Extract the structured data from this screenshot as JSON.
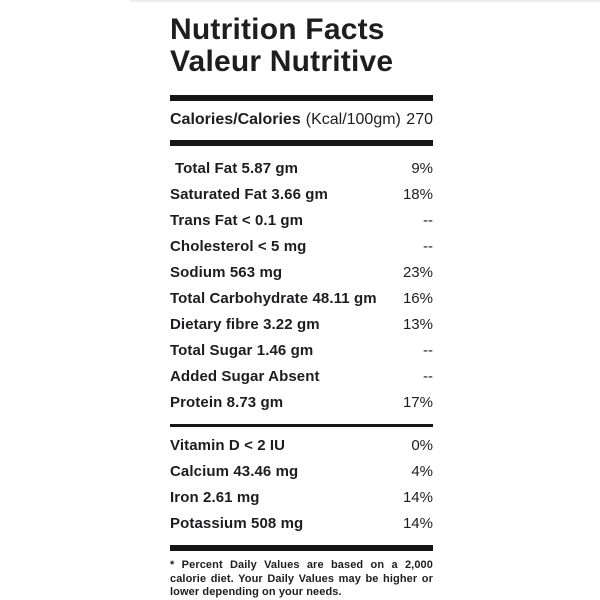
{
  "label": {
    "title_line1": "Nutrition Facts",
    "title_line2": "Valeur Nutritive",
    "calories": {
      "name": "Calories/Calories",
      "unit": "(Kcal/100gm)",
      "value": "270"
    },
    "nutrients": [
      {
        "label": "Total Fat 5.87 gm",
        "dv": "9%"
      },
      {
        "label": "Saturated Fat 3.66 gm",
        "dv": "18%"
      },
      {
        "label": "Trans Fat < 0.1 gm",
        "dv": "--"
      },
      {
        "label": "Cholesterol < 5 mg",
        "dv": "--"
      },
      {
        "label": "Sodium 563 mg",
        "dv": "23%"
      },
      {
        "label": "Total Carbohydrate 48.11 gm",
        "dv": "16%"
      },
      {
        "label": "Dietary fibre 3.22 gm",
        "dv": "13%"
      },
      {
        "label": "Total Sugar 1.46 gm",
        "dv": "--"
      },
      {
        "label": "Added Sugar Absent",
        "dv": "--"
      },
      {
        "label": "Protein 8.73 gm",
        "dv": "17%"
      }
    ],
    "micronutrients": [
      {
        "label": "Vitamin D < 2 IU",
        "dv": "0%"
      },
      {
        "label": "Calcium 43.46 mg",
        "dv": "4%"
      },
      {
        "label": "Iron 2.61 mg",
        "dv": "14%"
      },
      {
        "label": "Potassium 508 mg",
        "dv": "14%"
      }
    ],
    "footnote": "* Percent Daily Values are based on a 2,000 calorie diet. Your Daily Values may be higher or lower depending on your needs."
  },
  "colors": {
    "text": "#1d1d1f",
    "rule": "#161616",
    "page_edge": "#ececec",
    "background": "#ffffff"
  }
}
